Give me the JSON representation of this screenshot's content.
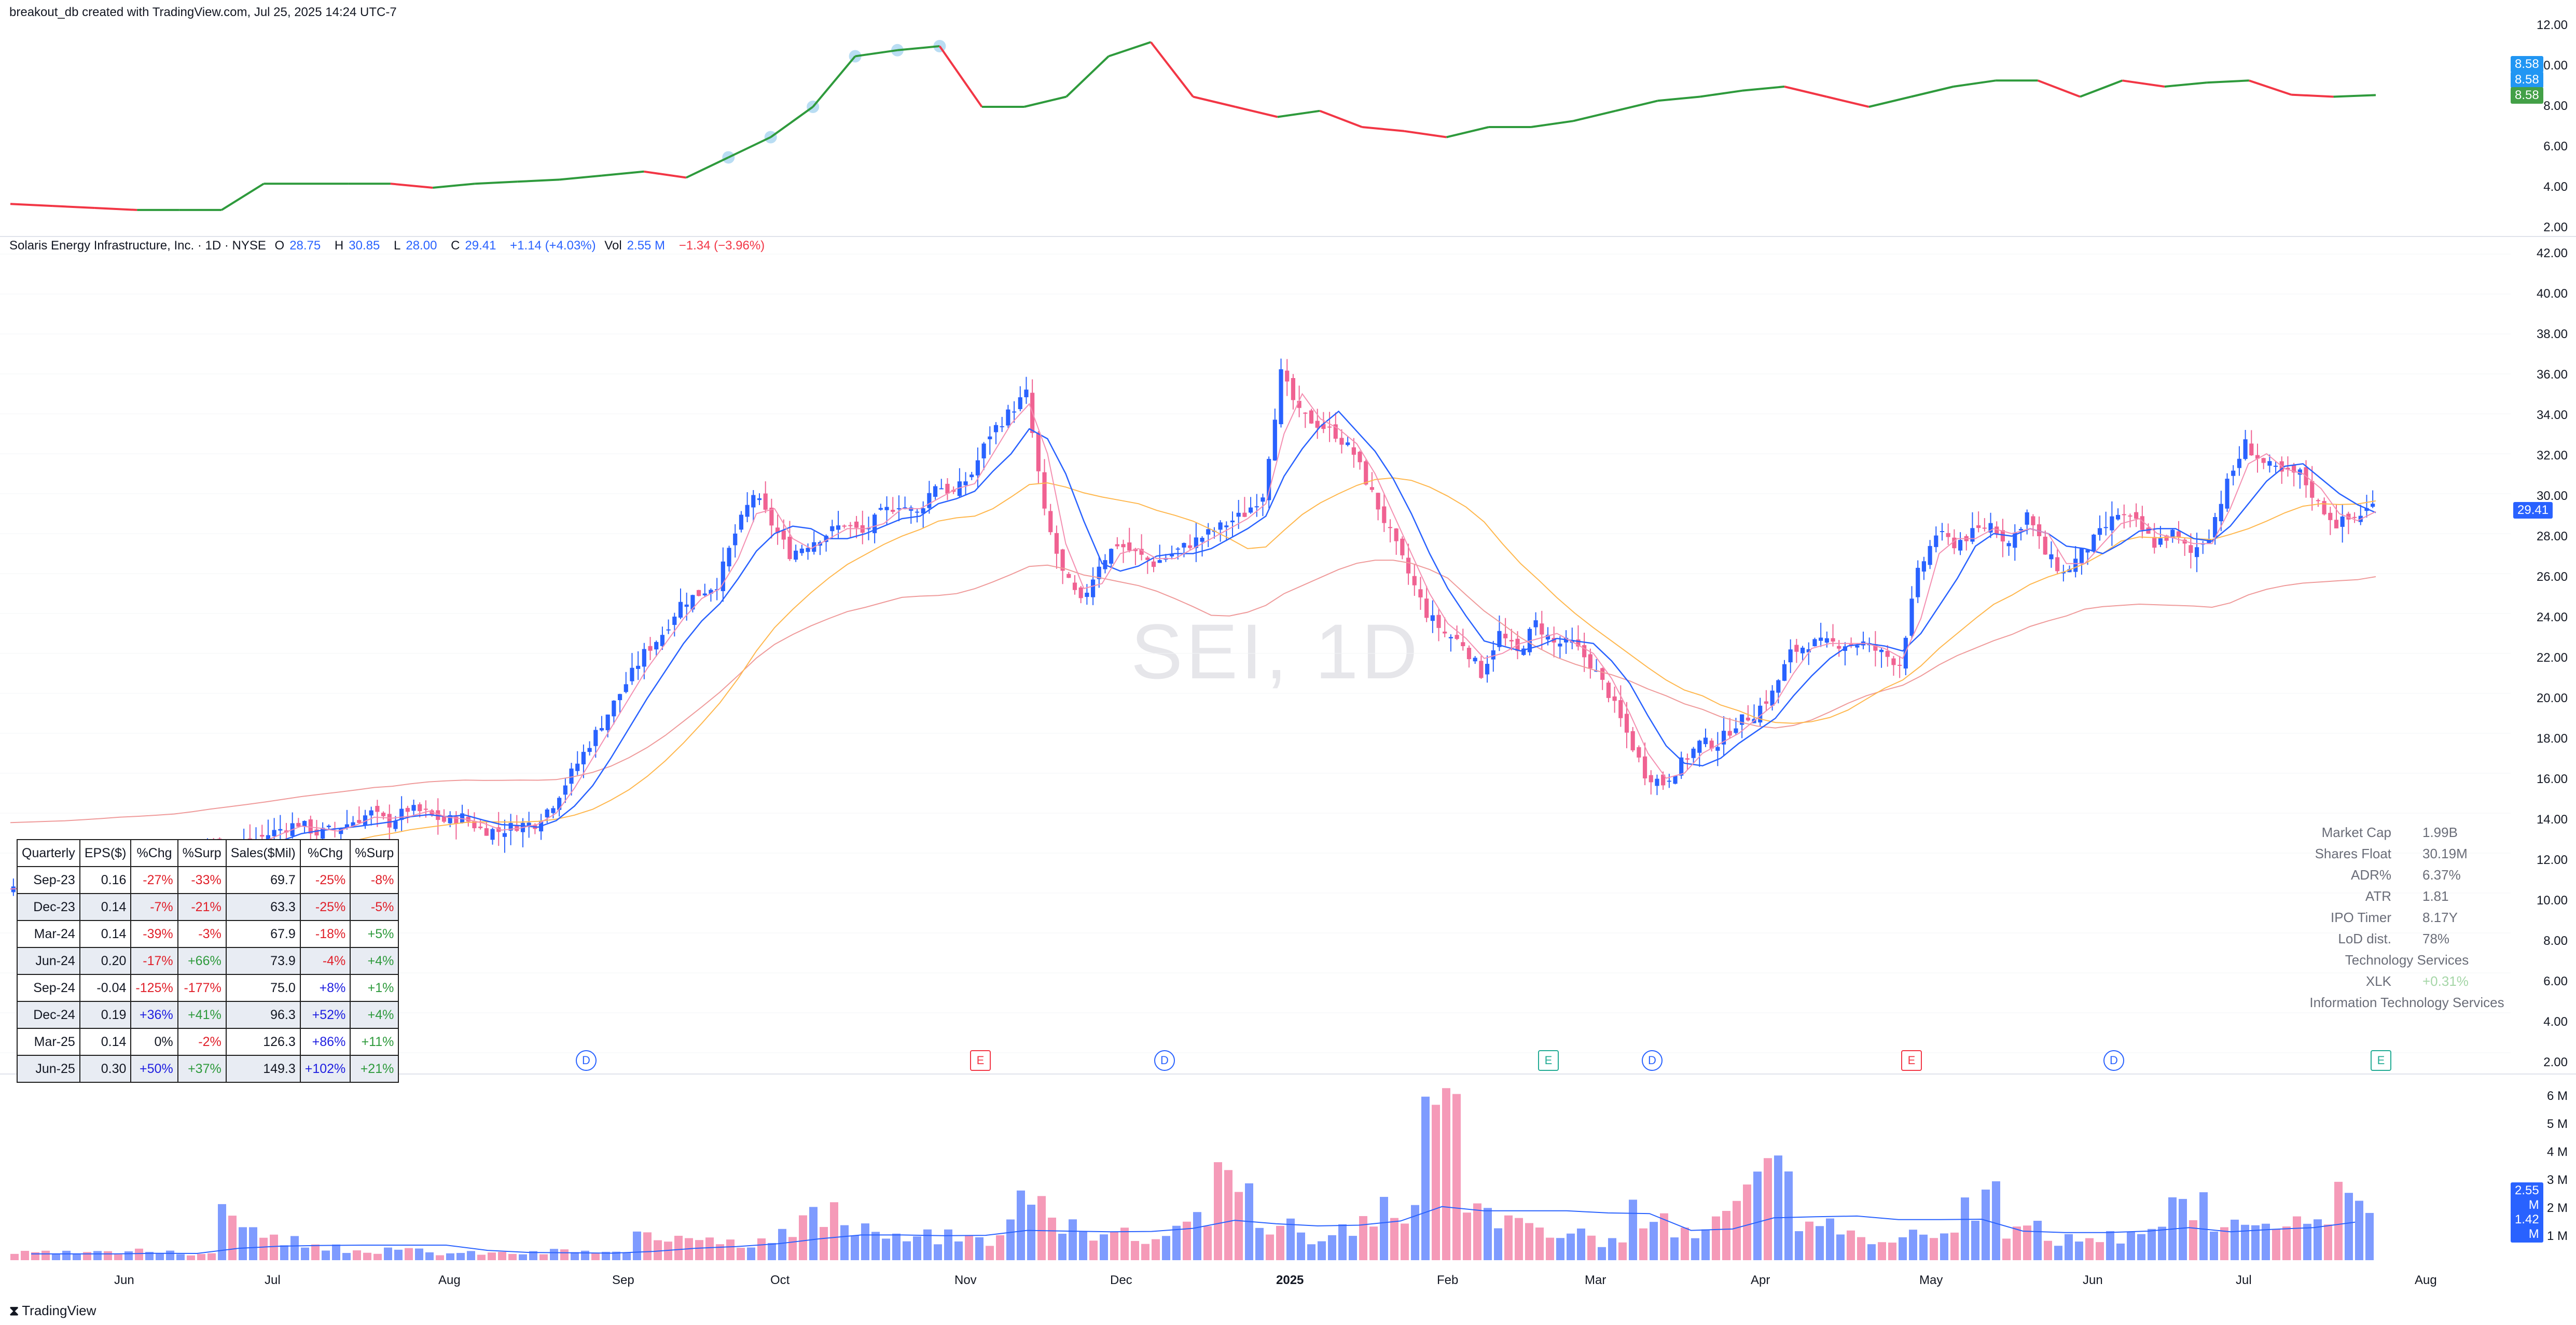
{
  "header": {
    "created_by": "breakout_db created with TradingView.com, Jul 25, 2025 14:24 UTC-7"
  },
  "legend": {
    "symbol": "Solaris Energy Infrastructure, Inc. · 1D · NYSE",
    "open_label": "O",
    "open": "28.75",
    "high_label": "H",
    "high": "30.85",
    "low_label": "L",
    "low": "28.00",
    "close_label": "C",
    "close": "29.41",
    "change": "+1.14 (+4.03%)",
    "vol_label": "Vol",
    "vol": "2.55 M",
    "vol_change": "−1.34 (−3.96%)"
  },
  "watermark": "SEI, 1D",
  "top_axis": [
    "12.00",
    "10.00",
    "8.00",
    "6.00",
    "4.00",
    "2.00"
  ],
  "top_tags": [
    "8.58",
    "8.58",
    "8.58"
  ],
  "price_axis": [
    "42.00",
    "40.00",
    "38.00",
    "36.00",
    "34.00",
    "32.00",
    "30.00",
    "28.00",
    "26.00",
    "24.00",
    "22.00",
    "20.00",
    "18.00",
    "16.00",
    "14.00",
    "12.00",
    "10.00",
    "8.00",
    "6.00",
    "4.00",
    "2.00"
  ],
  "price_tag": "29.41",
  "volume_axis": [
    "6 M",
    "5 M",
    "4 M",
    "3 M",
    "2 M",
    "1 M"
  ],
  "volume_tags": [
    "2.55 M",
    "1.42 M"
  ],
  "time_axis": [
    "Jun",
    "Jul",
    "Aug",
    "Sep",
    "Oct",
    "Nov",
    "Dec",
    "2025",
    "Feb",
    "Mar",
    "Apr",
    "May",
    "Jun",
    "Jul",
    "Aug"
  ],
  "markers": [
    "D",
    "D",
    "E",
    "D",
    "E",
    "D",
    "E",
    "D",
    "E"
  ],
  "fundamentals": {
    "headers": [
      "Quarterly",
      "EPS($)",
      "%Chg",
      "%Surp",
      "Sales($Mil)",
      "%Chg",
      "%Surp"
    ],
    "rows": [
      [
        "Sep-23",
        "0.16",
        "-27%",
        "-33%",
        "69.7",
        "-25%",
        "-8%"
      ],
      [
        "Dec-23",
        "0.14",
        "-7%",
        "-21%",
        "63.3",
        "-25%",
        "-5%"
      ],
      [
        "Mar-24",
        "0.14",
        "-39%",
        "-3%",
        "67.9",
        "-18%",
        "+5%"
      ],
      [
        "Jun-24",
        "0.20",
        "-17%",
        "+66%",
        "73.9",
        "-4%",
        "+4%"
      ],
      [
        "Sep-24",
        "-0.04",
        "-125%",
        "-177%",
        "75.0",
        "+8%",
        "+1%"
      ],
      [
        "Dec-24",
        "0.19",
        "+36%",
        "+41%",
        "96.3",
        "+52%",
        "+4%"
      ],
      [
        "Mar-25",
        "0.14",
        "0%",
        "-2%",
        "126.3",
        "+86%",
        "+11%"
      ],
      [
        "Jun-25",
        "0.30",
        "+50%",
        "+37%",
        "149.3",
        "+102%",
        "+21%"
      ]
    ]
  },
  "stats": {
    "market_cap_label": "Market Cap",
    "market_cap": "1.99B",
    "float_label": "Shares Float",
    "float": "30.19M",
    "adr_label": "ADR%",
    "adr": "6.37%",
    "atr_label": "ATR",
    "atr": "1.81",
    "ipo_label": "IPO Timer",
    "ipo": "8.17Y",
    "lod_label": "LoD dist.",
    "lod": "78%",
    "sector": "Technology Services",
    "etf_label": "XLK",
    "etf": "+0.31%",
    "industry": "Information Technology Services"
  },
  "footer": {
    "brand": "TradingView"
  },
  "colors": {
    "up": "#2962ff",
    "down": "#f06292",
    "rs_up": "#2e9a3c",
    "rs_down": "#f23645",
    "ema10": "#2962ff",
    "sma21": "#f48fb1",
    "sma50": "#ffb74d",
    "sma200": "#ef9a9a",
    "rs_highlight": "#a8d4f0"
  },
  "chart_data": {
    "type": "candlestick",
    "ylim": [
      2,
      42
    ],
    "months": [
      "Jun",
      "Jul",
      "Aug",
      "Sep",
      "Oct",
      "Nov",
      "Dec",
      "2025",
      "Feb",
      "Mar",
      "Apr",
      "May",
      "Jun",
      "Jul",
      "Aug"
    ],
    "close_path": [
      10.2,
      10.3,
      10.4,
      10.5,
      10.8,
      11.0,
      11.3,
      11.2,
      11.5,
      11.8,
      12.0,
      12.5,
      12.2,
      12.4,
      12.8,
      13.2,
      13.5,
      13.0,
      13.2,
      13.6,
      14.0,
      13.5,
      14.2,
      14.0,
      13.6,
      13.8,
      13.2,
      13.1,
      13.4,
      13.5,
      14.5,
      16,
      17.5,
      19,
      20.5,
      22,
      23,
      24.5,
      25,
      25.5,
      28,
      30,
      28.5,
      27,
      27.5,
      28,
      28.5,
      28,
      29,
      29.5,
      29,
      30.5,
      30,
      31,
      33,
      34,
      35,
      29,
      26,
      24.5,
      26.5,
      27.5,
      27,
      26.5,
      27,
      27.5,
      28,
      28.5,
      29,
      30,
      36,
      34,
      33.5,
      33,
      32,
      30,
      28,
      26,
      24,
      23,
      22.5,
      21,
      23,
      22,
      23.5,
      22.5,
      22.5,
      21.5,
      20,
      18,
      16,
      15.5,
      16.5,
      17.5,
      17.5,
      18.5,
      19,
      20,
      22,
      22.5,
      22.5,
      22.5,
      22.5,
      22,
      21.5,
      26,
      28,
      27.5,
      28,
      28.5,
      27.5,
      29,
      27,
      26,
      27,
      28,
      29,
      28.5,
      27.5,
      28,
      27,
      28,
      30.5,
      32.5,
      31.5,
      31,
      31,
      29.5,
      28.5,
      28.8,
      29.41
    ],
    "rs_line": [
      3.2,
      3.1,
      3.0,
      2.9,
      2.9,
      2.9,
      4.2,
      4.2,
      4.2,
      4.2,
      4.0,
      4.2,
      4.3,
      4.4,
      4.6,
      4.8,
      4.5,
      5.5,
      6.5,
      8.0,
      10.5,
      10.8,
      11.0,
      8.0,
      8.0,
      8.5,
      10.5,
      11.2,
      8.5,
      8.0,
      7.5,
      7.8,
      7.0,
      6.8,
      6.5,
      7.0,
      7.0,
      7.3,
      7.8,
      8.3,
      8.5,
      8.8,
      9.0,
      8.5,
      8.0,
      8.5,
      9.0,
      9.3,
      9.3,
      8.5,
      9.3,
      9.0,
      9.2,
      9.3,
      8.6,
      8.5,
      8.58
    ],
    "volume_millions": [
      0.3,
      0.3,
      0.3,
      0.4,
      0.3,
      1.8,
      0.9,
      0.5,
      0.4,
      0.4,
      0.3,
      0.3,
      0.3,
      0.4,
      0.3,
      0.9,
      1.2,
      0.8,
      1.1,
      1.8,
      1.4,
      0.9,
      1.0,
      0.9,
      2.5,
      1.6,
      1.2,
      1.0,
      1.9,
      3.2,
      1.5,
      1.0,
      1.4,
      2.2,
      6.0,
      2.0,
      1.5,
      1.0,
      0.8,
      2.0,
      1.2,
      2.4,
      4.7,
      1.3,
      1.0,
      1.0,
      1.2,
      2.5,
      1.3,
      0.9,
      1.0,
      1.4,
      2.2,
      1.3,
      2.0,
      1.4,
      2.55
    ]
  }
}
